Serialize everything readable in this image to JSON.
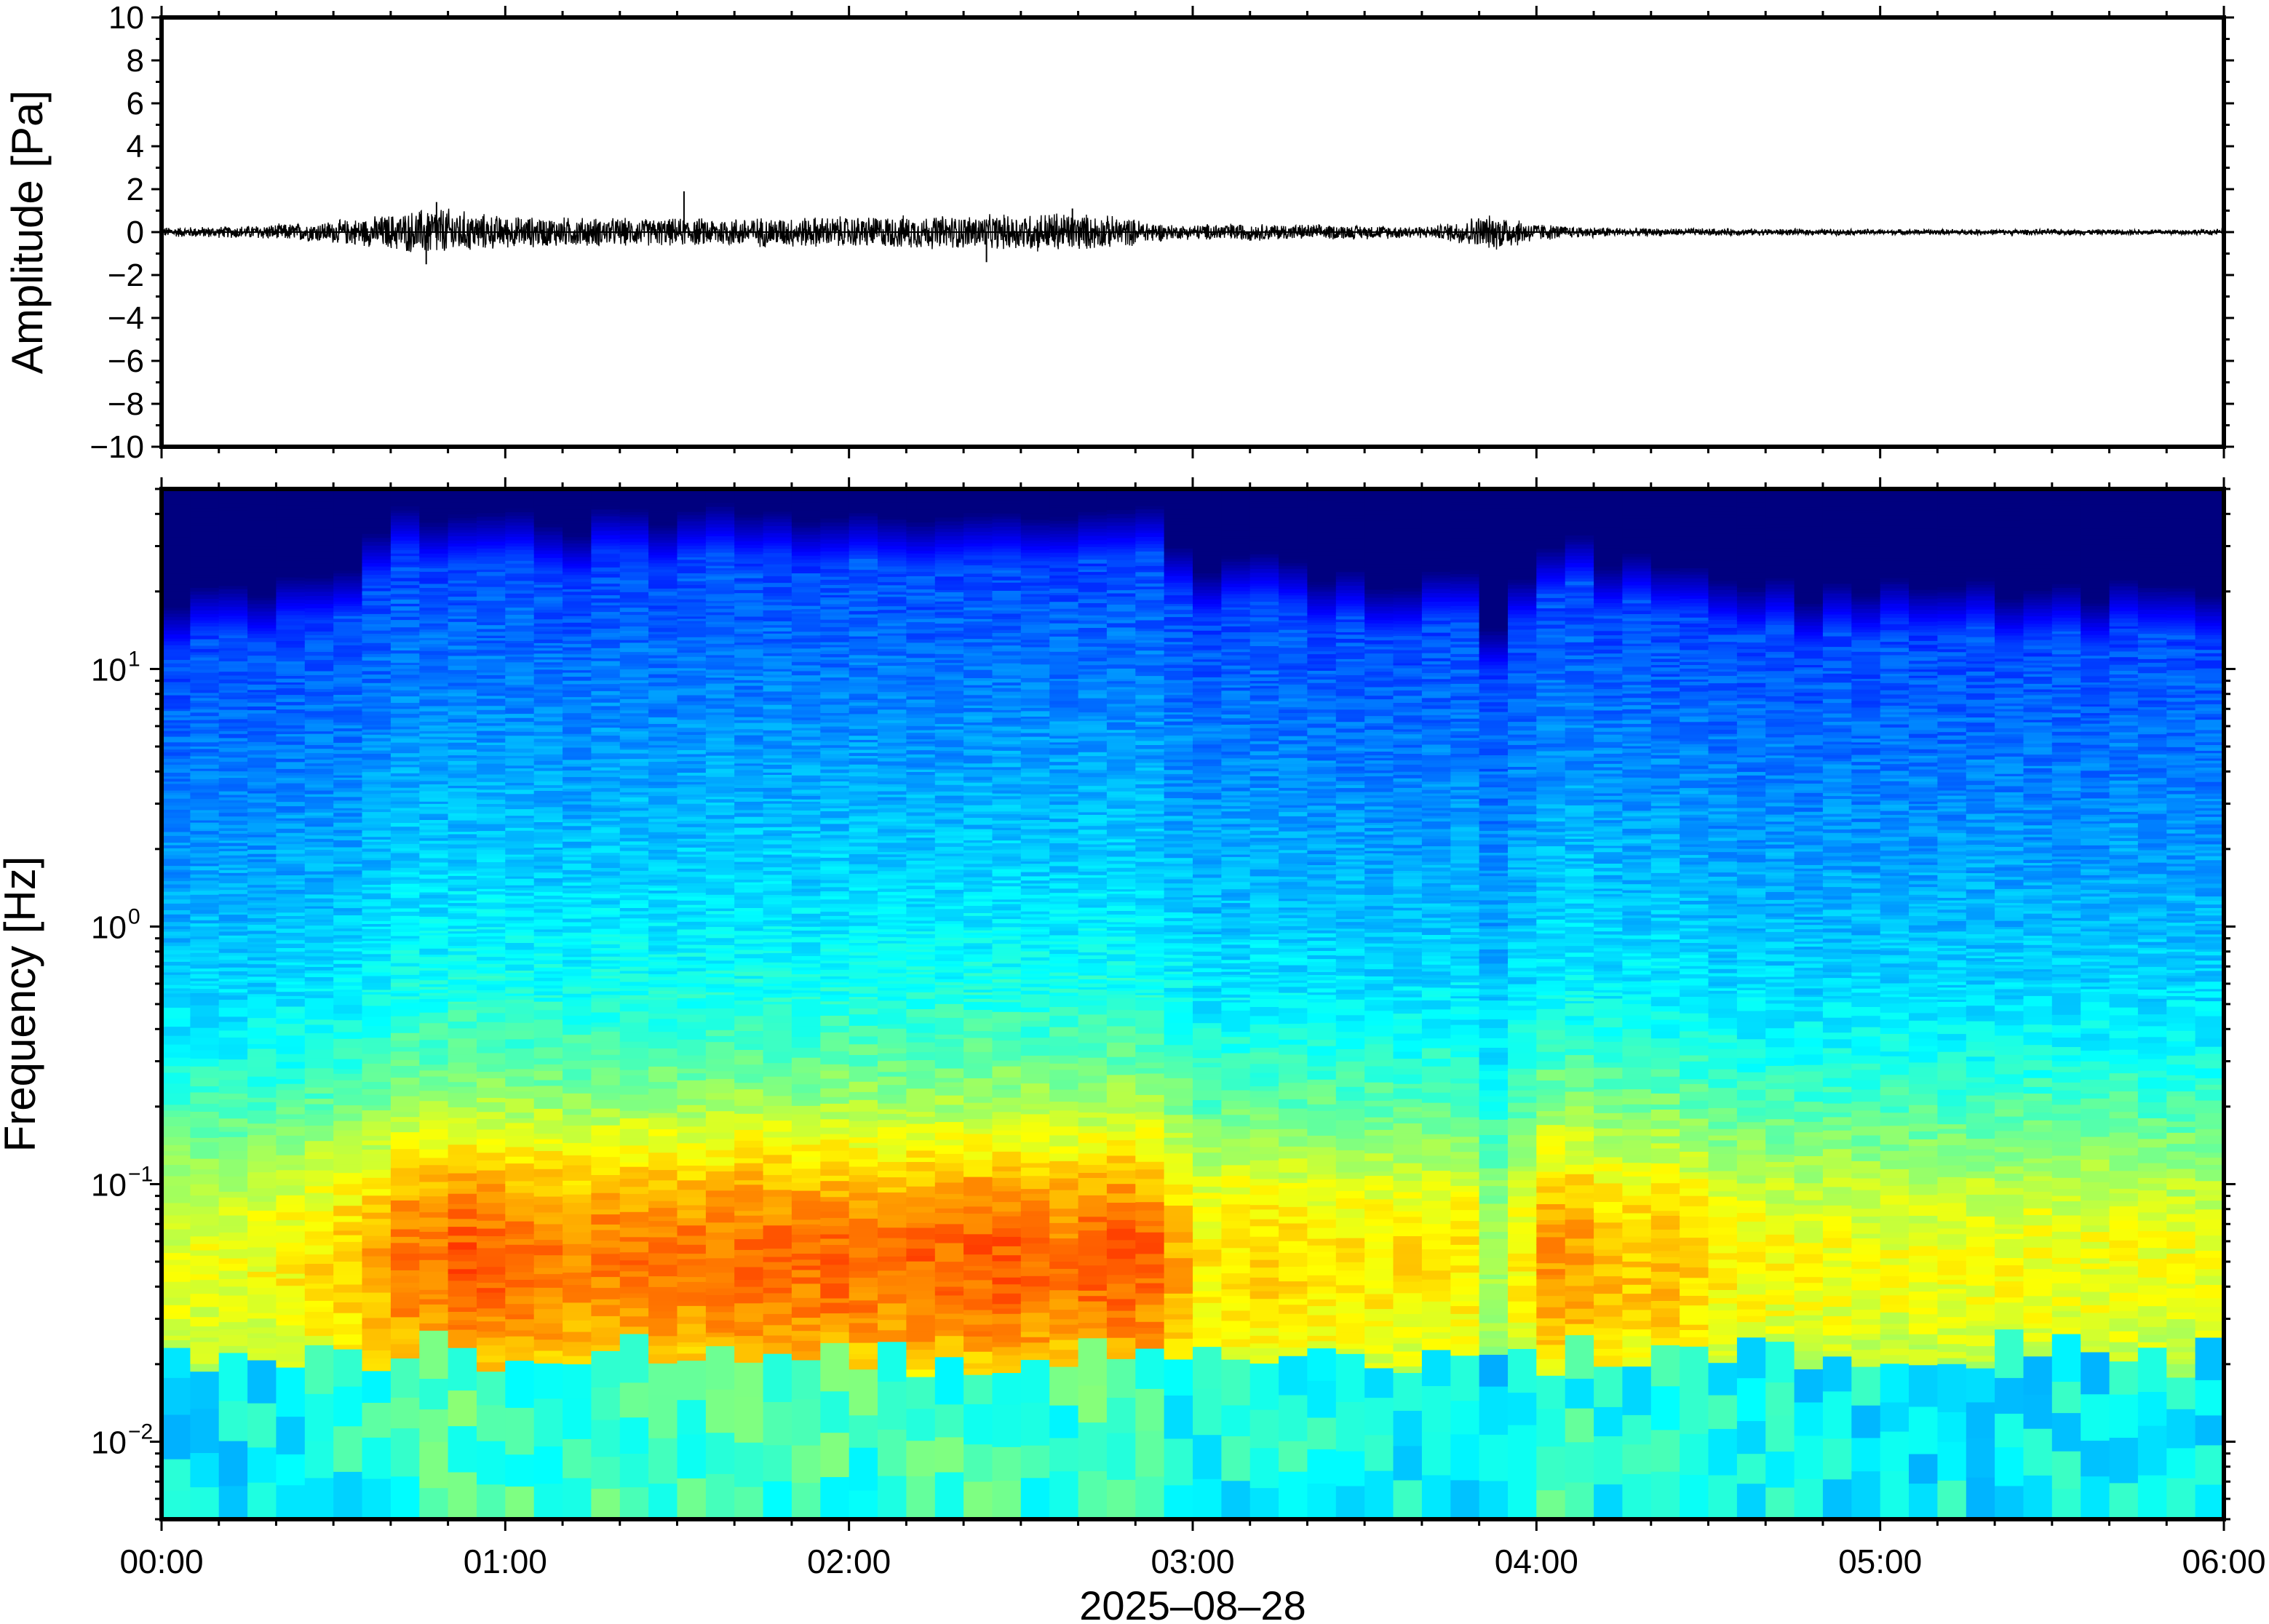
{
  "chart_data": [
    {
      "type": "line",
      "ylabel": "Amplitude [Pa]",
      "xlabel": "",
      "ylim": [
        -10,
        10
      ],
      "yticks": [
        10,
        8,
        6,
        4,
        2,
        0,
        -2,
        -4,
        -6,
        -8,
        -10
      ],
      "ytick_labels": [
        "10",
        "8",
        "6",
        "4",
        "2",
        "0",
        "−2",
        "−4",
        "−6",
        "−8",
        "−10"
      ],
      "xlim_hours": [
        0,
        6
      ],
      "x_unit": "hours after 2025-08-28 00:00",
      "envelope": {
        "x": [
          0,
          0.2,
          0.45,
          0.6,
          0.7,
          0.8,
          0.9,
          1.0,
          1.2,
          1.4,
          1.52,
          1.7,
          2.0,
          2.2,
          2.4,
          2.6,
          2.8,
          2.95,
          3.1,
          3.3,
          3.5,
          3.7,
          3.82,
          3.9,
          4.0,
          4.1,
          4.3,
          4.6,
          5.0,
          5.5,
          6.0
        ],
        "y": [
          0.25,
          0.3,
          0.5,
          0.75,
          1.0,
          1.3,
          1.0,
          0.8,
          0.75,
          0.7,
          0.7,
          0.75,
          0.8,
          0.85,
          0.85,
          1.05,
          0.75,
          0.35,
          0.45,
          0.4,
          0.35,
          0.3,
          0.8,
          0.9,
          0.45,
          0.3,
          0.2,
          0.18,
          0.15,
          0.15,
          0.15
        ]
      },
      "spikes": [
        {
          "x": 0.8,
          "y": 1.4
        },
        {
          "x": 0.77,
          "y": -1.5
        },
        {
          "x": 1.52,
          "y": 1.9
        },
        {
          "x": 2.4,
          "y": -1.4
        },
        {
          "x": 2.65,
          "y": 1.1
        }
      ]
    },
    {
      "type": "heatmap",
      "ylabel": "Frequency [Hz]",
      "xlabel": "2025–08–28",
      "y_scale": "log",
      "ylim": [
        0.005,
        50
      ],
      "yticks": [
        10,
        1,
        0.1,
        0.01
      ],
      "ytick_bases": [
        "10",
        "10",
        "10",
        "10"
      ],
      "ytick_exponents": [
        "1",
        "0",
        "−1",
        "−2"
      ],
      "xlim_hours": [
        0,
        6
      ],
      "xticks": [
        "00:00",
        "01:00",
        "02:00",
        "03:00",
        "04:00",
        "05:00",
        "06:00"
      ],
      "colormap": "jet",
      "colormap_stops": [
        "#00007f",
        "#0000ff",
        "#0080ff",
        "#00ffff",
        "#80ff80",
        "#ffff00",
        "#ff8000",
        "#ff0000"
      ],
      "value_scale": "relative power 0-1",
      "activity_by_10min": [
        0.3,
        0.32,
        0.34,
        0.36,
        0.4,
        0.45,
        0.52,
        0.58,
        0.72,
        0.74,
        0.8,
        0.78,
        0.74,
        0.72,
        0.7,
        0.72,
        0.73,
        0.74,
        0.72,
        0.74,
        0.76,
        0.75,
        0.74,
        0.76,
        0.75,
        0.74,
        0.77,
        0.75,
        0.78,
        0.8,
        0.76,
        0.73,
        0.77,
        0.8,
        0.76,
        0.6,
        0.42,
        0.46,
        0.48,
        0.46,
        0.45,
        0.45,
        0.43,
        0.44,
        0.42,
        0.44,
        0.18,
        0.4,
        0.65,
        0.62,
        0.55,
        0.52,
        0.55,
        0.48,
        0.4,
        0.38,
        0.36,
        0.36,
        0.36,
        0.34,
        0.34,
        0.34,
        0.34,
        0.34,
        0.35,
        0.36,
        0.34,
        0.34,
        0.36,
        0.33,
        0.33,
        0.32
      ]
    }
  ]
}
